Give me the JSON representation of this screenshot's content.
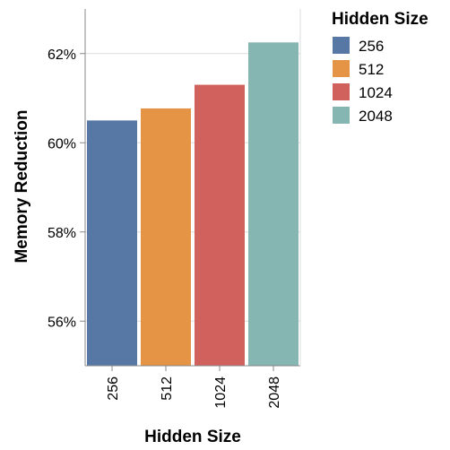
{
  "chart_data": {
    "type": "bar",
    "categories": [
      "256",
      "512",
      "1024",
      "2048"
    ],
    "values": [
      60.5,
      60.77,
      61.3,
      62.25
    ],
    "xlabel": "Hidden Size",
    "ylabel": "Memory Reduction",
    "ylim": [
      55,
      63
    ],
    "y_ticks": [
      56,
      58,
      60,
      62
    ],
    "y_tick_labels": [
      "56%",
      "58%",
      "60%",
      "62%"
    ],
    "colors": [
      "#5778a4",
      "#e49444",
      "#d1615d",
      "#85b6b2"
    ],
    "grid": true,
    "legend": {
      "title": "Hidden Size",
      "placement": "right",
      "entries": [
        "256",
        "512",
        "1024",
        "2048"
      ]
    }
  }
}
